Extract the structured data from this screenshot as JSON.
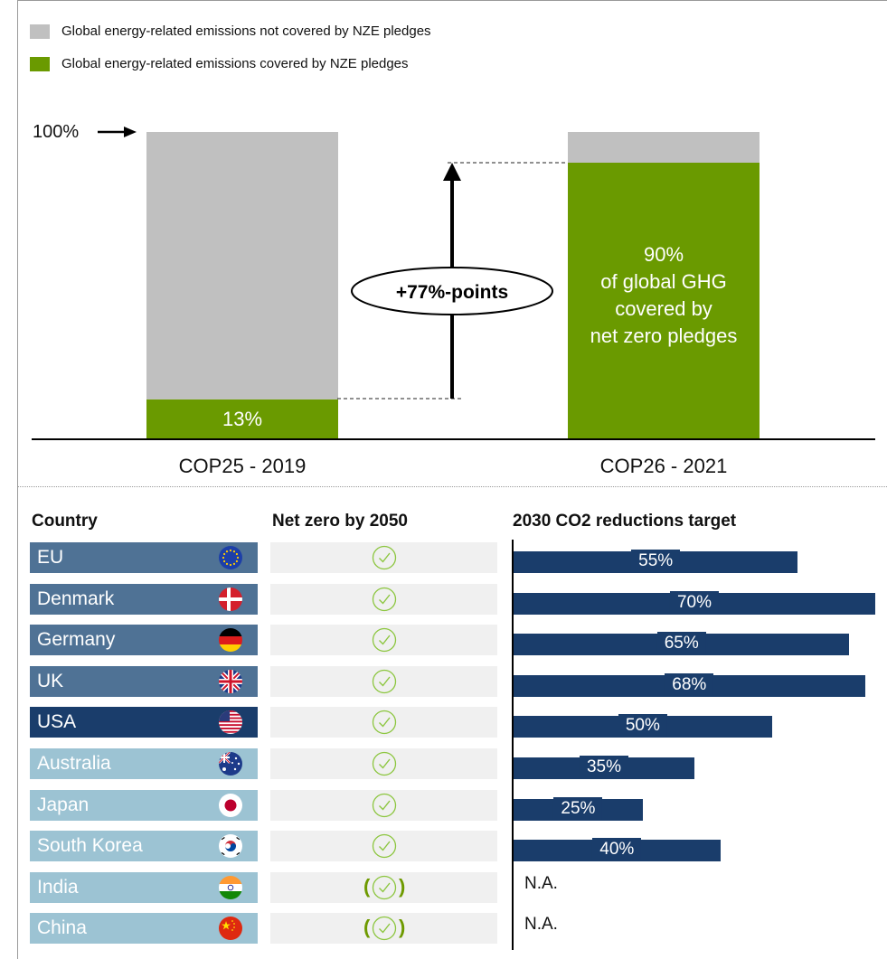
{
  "legend": [
    {
      "label": "Global energy-related emissions not covered by NZE pledges",
      "color": "#c0c0c0"
    },
    {
      "label": "Global energy-related emissions covered by NZE pledges",
      "color": "#6a9a00"
    }
  ],
  "hundred_label": "100%",
  "increase_label": "+77%-points",
  "chart_data": {
    "type": "bar",
    "stacked": true,
    "categories": [
      "COP25 - 2019",
      "COP26 - 2021"
    ],
    "ylim": [
      0,
      100
    ],
    "series": [
      {
        "name": "Global energy-related emissions covered by NZE pledges",
        "values": [
          13,
          90
        ],
        "color": "#6a9a00"
      },
      {
        "name": "Global energy-related emissions not covered by NZE pledges",
        "values": [
          87,
          10
        ],
        "color": "#c0c0c0"
      }
    ],
    "bar_texts": [
      [
        "13%"
      ],
      [
        "90%",
        "of global GHG",
        "covered by",
        "net zero pledges"
      ]
    ]
  },
  "table": {
    "headers": {
      "country": "Country",
      "net_zero": "Net zero by 2050",
      "target": "2030 CO2 reductions target"
    },
    "rows": [
      {
        "country": "EU",
        "flag": "eu-flag-icon",
        "net_zero": "yes",
        "target": 55,
        "target_label": "55%",
        "shade": "#4f7295"
      },
      {
        "country": "Denmark",
        "flag": "denmark-flag-icon",
        "net_zero": "yes",
        "target": 70,
        "target_label": "70%",
        "shade": "#4f7295"
      },
      {
        "country": "Germany",
        "flag": "germany-flag-icon",
        "net_zero": "yes",
        "target": 65,
        "target_label": "65%",
        "shade": "#4f7295"
      },
      {
        "country": "UK",
        "flag": "uk-flag-icon",
        "net_zero": "yes",
        "target": 68,
        "target_label": "68%",
        "shade": "#4f7295"
      },
      {
        "country": "USA",
        "flag": "usa-flag-icon",
        "net_zero": "yes",
        "target": 50,
        "target_label": "50%",
        "shade": "#1a3d6b"
      },
      {
        "country": "Australia",
        "flag": "australia-flag-icon",
        "net_zero": "yes",
        "target": 35,
        "target_label": "35%",
        "shade": "#9cc3d3"
      },
      {
        "country": "Japan",
        "flag": "japan-flag-icon",
        "net_zero": "yes",
        "target": 25,
        "target_label": "25%",
        "shade": "#9cc3d3"
      },
      {
        "country": "South Korea",
        "flag": "south-korea-flag-icon",
        "net_zero": "yes",
        "target": 40,
        "target_label": "40%",
        "shade": "#9cc3d3"
      },
      {
        "country": "India",
        "flag": "india-flag-icon",
        "net_zero": "partial",
        "target": null,
        "target_label": "N.A.",
        "shade": "#9cc3d3"
      },
      {
        "country": "China",
        "flag": "china-flag-icon",
        "net_zero": "partial",
        "target": null,
        "target_label": "N.A.",
        "shade": "#9cc3d3"
      }
    ],
    "target_max": 70,
    "bar_color": "#1a3d6b",
    "check_color": "#8cc63f"
  }
}
